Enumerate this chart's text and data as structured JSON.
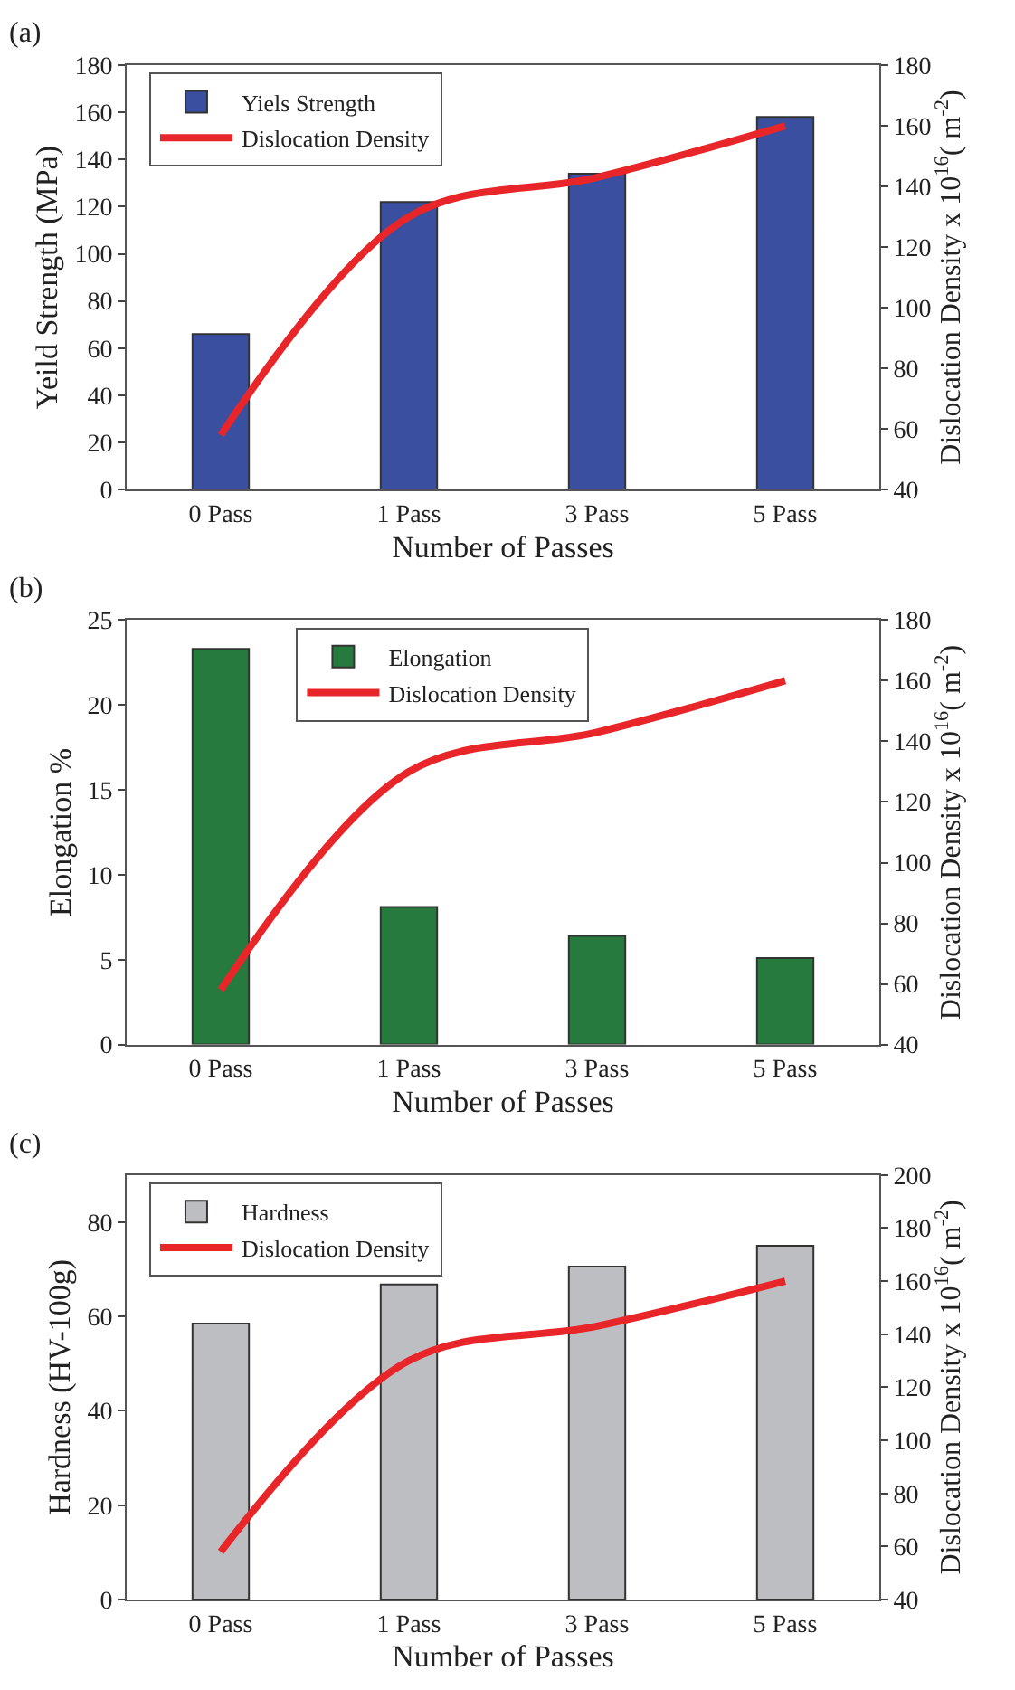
{
  "chart_data": [
    {
      "type": "bar",
      "title": "(a)",
      "xlabel": "Number of Passes",
      "ylabel": "Yeild Strength (MPa)",
      "y2label": "Dislocation Density x 10$^{16}$( m$^{-2}$)",
      "categories": [
        "0 Pass",
        "1 Pass",
        "3 Pass",
        "5 Pass"
      ],
      "ylim": [
        0,
        180
      ],
      "yticks": [
        0,
        20,
        40,
        60,
        80,
        100,
        120,
        140,
        160,
        180
      ],
      "y2lim": [
        40,
        180
      ],
      "y2ticks": [
        40,
        60,
        80,
        100,
        120,
        140,
        160,
        180
      ],
      "legend": "top left",
      "series": [
        {
          "name": "Yiels Strength",
          "color": "#3a4fa0",
          "values": [
            66,
            122,
            134,
            158
          ]
        },
        {
          "name": "Dislocation Density",
          "type": "line",
          "axis": "y2",
          "color": "#e8262a",
          "values": [
            58,
            130,
            143,
            160
          ]
        }
      ]
    },
    {
      "type": "bar",
      "title": "(b)",
      "xlabel": "Number of Passes",
      "ylabel": "Elongation %",
      "y2label": "Dislocation Density x 10$^{16}$( m$^{-2}$)",
      "categories": [
        "0 Pass",
        "1 Pass",
        "3 Pass",
        "5 Pass"
      ],
      "ylim": [
        0,
        25
      ],
      "yticks": [
        0,
        5,
        10,
        15,
        20,
        25
      ],
      "y2lim": [
        40,
        180
      ],
      "y2ticks": [
        40,
        60,
        80,
        100,
        120,
        140,
        160,
        180
      ],
      "legend": "top",
      "series": [
        {
          "name": "Elongation",
          "color": "#267a3e",
          "values": [
            23.3,
            8.1,
            6.4,
            5.1
          ]
        },
        {
          "name": "Dislocation Density",
          "type": "line",
          "axis": "y2",
          "color": "#e8262a",
          "values": [
            58,
            130,
            143,
            160
          ]
        }
      ]
    },
    {
      "type": "bar",
      "title": "(c)",
      "xlabel": "Number of Passes",
      "ylabel": "Hardness (HV-100g)",
      "y2label": "Dislocation Density x 10$^{16}$( m$^{-2}$)",
      "categories": [
        "0 Pass",
        "1 Pass",
        "3 Pass",
        "5 Pass"
      ],
      "ylim": [
        0,
        90
      ],
      "yticks": [
        0,
        20,
        40,
        60,
        80
      ],
      "y2lim": [
        40,
        200
      ],
      "y2ticks": [
        40,
        60,
        80,
        100,
        120,
        140,
        160,
        180,
        200
      ],
      "legend": "top left",
      "series": [
        {
          "name": "Hardness",
          "color": "#bcbec2",
          "values": [
            58.5,
            66.8,
            70.6,
            75
          ]
        },
        {
          "name": "Dislocation Density",
          "type": "line",
          "axis": "y2",
          "color": "#e8262a",
          "values": [
            58,
            130,
            143,
            160
          ]
        }
      ]
    }
  ]
}
